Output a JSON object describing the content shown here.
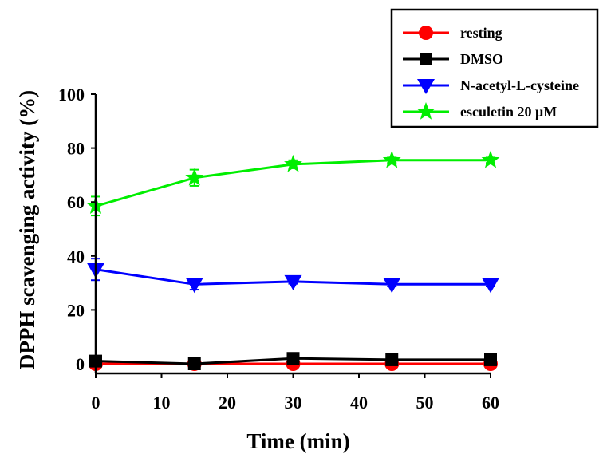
{
  "chart_data": {
    "type": "line",
    "xlabel": "Time (min)",
    "ylabel": "DPPH scavenging activity (%)",
    "xlim": [
      0,
      60
    ],
    "ylim": [
      0,
      100
    ],
    "xticks": [
      0,
      10,
      20,
      30,
      40,
      50,
      60
    ],
    "yticks": [
      0,
      20,
      40,
      60,
      80,
      100
    ],
    "x": [
      0,
      15,
      30,
      45,
      60
    ],
    "legend_position": "top-right",
    "grid": false,
    "series": [
      {
        "name": "resting",
        "color": "#ff0000",
        "marker": "circle",
        "values": [
          0,
          0,
          0,
          0,
          0
        ],
        "errors": [
          0.5,
          0.5,
          0.5,
          0.5,
          0.5
        ]
      },
      {
        "name": "DMSO",
        "color": "#000000",
        "marker": "square",
        "values": [
          1,
          0,
          2,
          1.5,
          1.5
        ],
        "errors": [
          0.5,
          0.5,
          0.5,
          0.5,
          0.5
        ]
      },
      {
        "name": "N-acetyl-L-cysteine",
        "color": "#0000ff",
        "marker": "triangle-down",
        "values": [
          35,
          29.5,
          30.5,
          29.5,
          29.5
        ],
        "errors": [
          4,
          2,
          0.8,
          0.8,
          0.8
        ]
      },
      {
        "name": "esculetin 20 μM",
        "color": "#00ee00",
        "marker": "star",
        "values": [
          58.5,
          69,
          74,
          75.5,
          75.5
        ],
        "errors": [
          3.5,
          3,
          1.5,
          1,
          1
        ]
      }
    ]
  }
}
